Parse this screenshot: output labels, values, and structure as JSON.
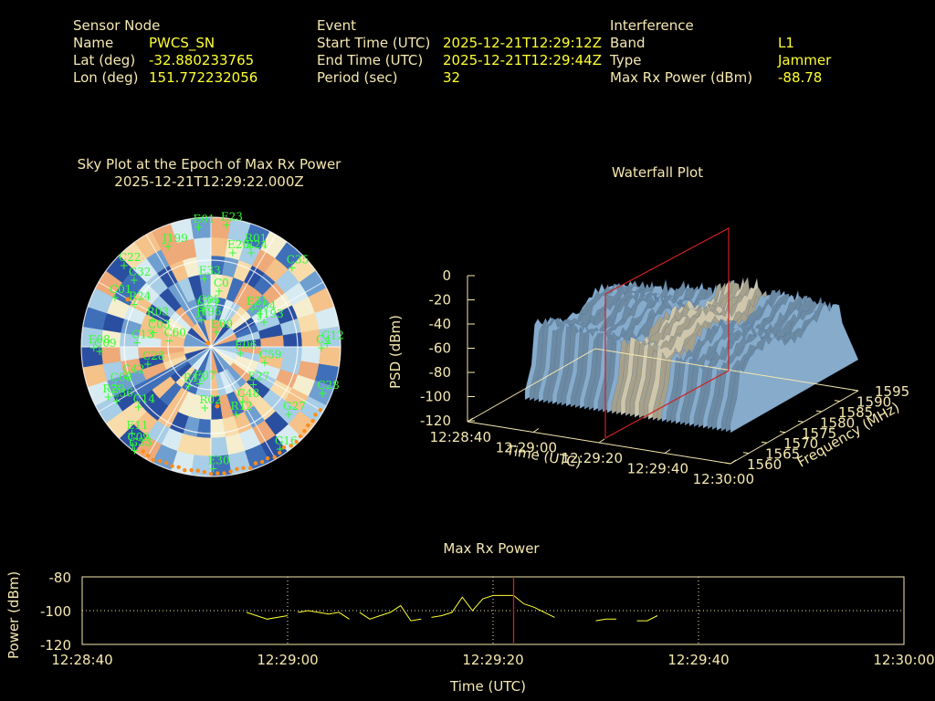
{
  "header": {
    "sensor": {
      "title": "Sensor Node",
      "name_label": "Name",
      "name_value": "PWCS_SN",
      "lat_label": "Lat (deg)",
      "lat_value": "-32.880233765",
      "lon_label": "Lon (deg)",
      "lon_value": "151.772232056"
    },
    "event": {
      "title": "Event",
      "start_label": "Start Time (UTC)",
      "start_value": "2025-12-21T12:29:12Z",
      "end_label": "End Time (UTC)",
      "end_value": "2025-12-21T12:29:44Z",
      "period_label": "Period (sec)",
      "period_value": "32"
    },
    "interference": {
      "title": "Interference",
      "band_label": "Band",
      "band_value": "L1",
      "type_label": "Type",
      "type_value": "Jammer",
      "power_label": "Max Rx Power (dBm)",
      "power_value": "-88.78"
    }
  },
  "sky": {
    "title": "Sky Plot at the Epoch of Max Rx Power",
    "subtitle": "2025-12-21T12:29:22.000Z",
    "satellites": [
      {
        "id": "E01",
        "az": 355,
        "el": 84
      },
      {
        "id": "E23",
        "az": 8,
        "el": 86
      },
      {
        "id": "J199",
        "az": 338,
        "el": 76
      },
      {
        "id": "R01",
        "az": 22,
        "el": 76
      },
      {
        "id": "E26",
        "az": 14,
        "el": 68
      },
      {
        "id": "E24",
        "az": 24,
        "el": 72
      },
      {
        "id": "C35",
        "az": 46,
        "el": 80
      },
      {
        "id": "C22",
        "az": 314,
        "el": 82
      },
      {
        "id": "E33",
        "az": 356,
        "el": 48
      },
      {
        "id": "C0",
        "az": 10,
        "el": 40
      },
      {
        "id": "C05",
        "az": 352,
        "el": 28
      },
      {
        "id": "E21",
        "az": 48,
        "el": 40
      },
      {
        "id": "C04",
        "az": 56,
        "el": 42
      },
      {
        "id": "R24",
        "az": 300,
        "el": 60
      },
      {
        "id": "C21",
        "az": 350,
        "el": 26
      },
      {
        "id": "J196",
        "az": 345,
        "el": 20
      },
      {
        "id": "C32",
        "az": 312,
        "el": 70
      },
      {
        "id": "C01",
        "az": 298,
        "el": 74
      },
      {
        "id": "R03",
        "az": 296,
        "el": 44
      },
      {
        "id": "C03",
        "az": 285,
        "el": 40
      },
      {
        "id": "E09",
        "az": 25,
        "el": 12
      },
      {
        "id": "J193",
        "az": 65,
        "el": 42
      },
      {
        "id": "C60",
        "az": 280,
        "el": 28
      },
      {
        "id": "C13",
        "az": 274,
        "el": 50
      },
      {
        "id": "E06",
        "az": 100,
        "el": 22
      },
      {
        "id": "C59",
        "az": 105,
        "el": 40
      },
      {
        "id": "E08",
        "az": 270,
        "el": 80
      },
      {
        "id": "C09",
        "az": 268,
        "el": 76
      },
      {
        "id": "C28",
        "az": 255,
        "el": 44
      },
      {
        "id": "C42",
        "az": 250,
        "el": 60
      },
      {
        "id": "C12",
        "az": 88,
        "el": 82
      },
      {
        "id": "C4",
        "az": 90,
        "el": 78
      },
      {
        "id": "R20",
        "az": 244,
        "el": 78
      },
      {
        "id": "C08",
        "az": 248,
        "el": 70
      },
      {
        "id": "E36",
        "az": 240,
        "el": 74
      },
      {
        "id": "R13",
        "az": 208,
        "el": 30
      },
      {
        "id": "E07",
        "az": 195,
        "el": 26
      },
      {
        "id": "E27",
        "az": 130,
        "el": 40
      },
      {
        "id": "C48",
        "az": 148,
        "el": 44
      },
      {
        "id": "C14",
        "az": 230,
        "el": 64
      },
      {
        "id": "R02",
        "az": 184,
        "el": 42
      },
      {
        "id": "R12",
        "az": 158,
        "el": 50
      },
      {
        "id": "G27",
        "az": 130,
        "el": 72
      },
      {
        "id": "C28",
        "az": 112,
        "el": 85
      },
      {
        "id": "E11",
        "az": 222,
        "el": 80
      },
      {
        "id": "C09",
        "az": 218,
        "el": 86
      },
      {
        "id": "G33",
        "az": 216,
        "el": 88
      },
      {
        "id": "G16",
        "az": 145,
        "el": 86
      },
      {
        "id": "E30",
        "az": 178,
        "el": 84
      }
    ]
  },
  "waterfall": {
    "title": "Waterfall Plot",
    "zlabel": "PSD (dBm)",
    "xlabel": "Time (UTC)",
    "ylabel": "Frequency (MHz)",
    "z_ticks": [
      "0",
      "-20",
      "-40",
      "-60",
      "-80",
      "-100",
      "-120"
    ],
    "x_ticks": [
      "12:28:40",
      "12:29:00",
      "12:29:20",
      "12:29:40",
      "12:30:00"
    ],
    "y_ticks": [
      "1560",
      "1565",
      "1570",
      "1575",
      "1580",
      "1585",
      "1590",
      "1595"
    ]
  },
  "chart_data": [
    {
      "type": "line",
      "title": "Max Rx Power",
      "xlabel": "Time (UTC)",
      "ylabel": "Power (dBm)",
      "ylim": [
        -120,
        -80
      ],
      "xlim": [
        "12:28:40",
        "12:30:00"
      ],
      "x_tick_labels": [
        "12:28:40",
        "12:29:00",
        "12:29:20",
        "12:29:40",
        "12:30:00"
      ],
      "y_tick_labels": [
        "-80",
        "-100",
        "-120"
      ],
      "grid": true,
      "color": "#ffff33",
      "marker_time": "12:29:22",
      "segments": [
        [
          [
            "12:28:56",
            -101
          ],
          [
            "12:28:58",
            -105
          ],
          [
            "12:29:00",
            -103
          ]
        ],
        [
          [
            "12:29:01",
            -101
          ],
          [
            "12:29:02",
            -100
          ],
          [
            "12:29:03",
            -101
          ],
          [
            "12:29:04",
            -102
          ],
          [
            "12:29:05",
            -101
          ],
          [
            "12:29:06",
            -105
          ]
        ],
        [
          [
            "12:29:07",
            -101
          ],
          [
            "12:29:08",
            -105
          ],
          [
            "12:29:09",
            -103
          ],
          [
            "12:29:10",
            -101
          ],
          [
            "12:29:11",
            -97
          ],
          [
            "12:29:12",
            -106
          ],
          [
            "12:29:13",
            -105
          ]
        ],
        [
          [
            "12:29:14",
            -104
          ],
          [
            "12:29:15",
            -103
          ],
          [
            "12:29:16",
            -101
          ],
          [
            "12:29:17",
            -92
          ],
          [
            "12:29:18",
            -100
          ],
          [
            "12:29:19",
            -93
          ],
          [
            "12:29:20",
            -91
          ],
          [
            "12:29:21",
            -91
          ],
          [
            "12:29:22",
            -91
          ],
          [
            "12:29:23",
            -96
          ],
          [
            "12:29:24",
            -98
          ],
          [
            "12:29:25",
            -101
          ],
          [
            "12:29:26",
            -104
          ]
        ],
        [
          [
            "12:29:30",
            -106
          ],
          [
            "12:29:31",
            -105
          ],
          [
            "12:29:32",
            -105
          ]
        ],
        [
          [
            "12:29:34",
            -106
          ],
          [
            "12:29:35",
            -106
          ],
          [
            "12:29:36",
            -103
          ]
        ]
      ]
    }
  ]
}
